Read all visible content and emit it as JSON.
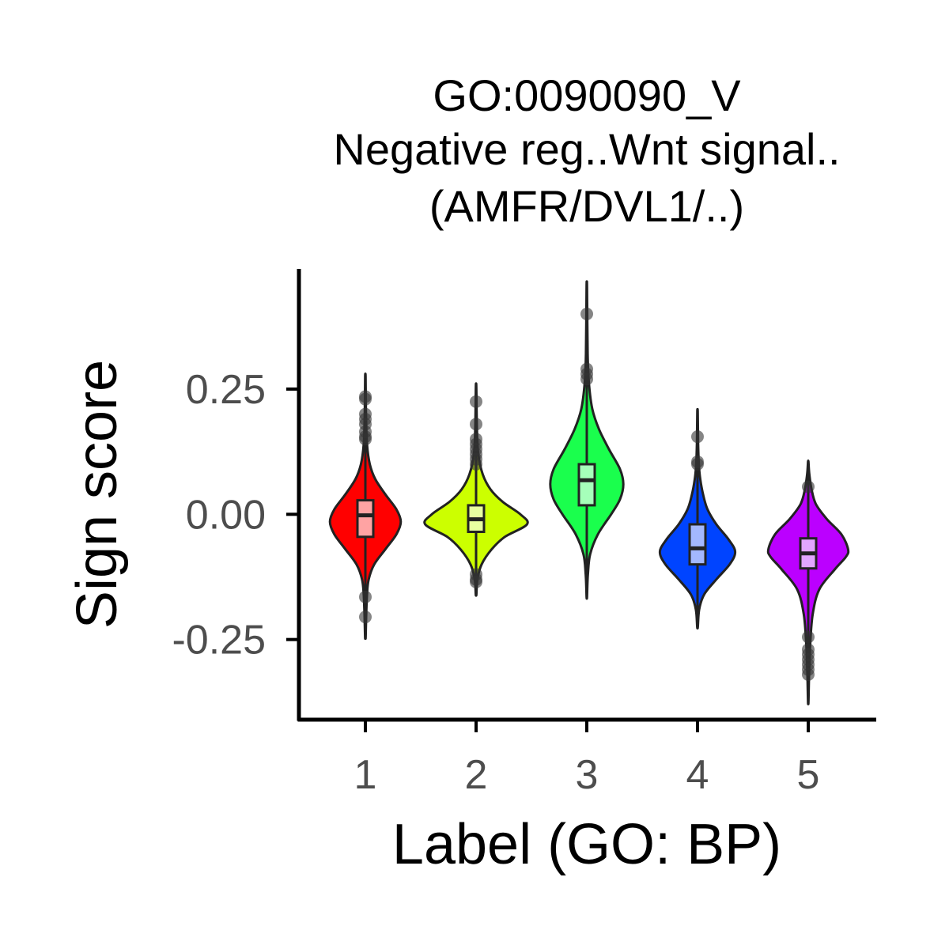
{
  "chart_data": {
    "type": "violin",
    "title_lines": [
      "GO:0090090_V",
      "Negative reg..Wnt signal..",
      "(AMFR/DVL1/..)"
    ],
    "xlabel": "Label (GO: BP)",
    "ylabel": "Sign score",
    "categories": [
      "1",
      "2",
      "3",
      "4",
      "5"
    ],
    "yticks": [
      0.25,
      0.0,
      -0.25
    ],
    "ytick_labels": [
      "0.25",
      "0.00",
      "-0.25"
    ],
    "ylim": [
      -0.41,
      0.49
    ],
    "grid": false,
    "legend": "none",
    "colors": [
      "#ff0000",
      "#ccff00",
      "#1aff4d",
      "#0044ff",
      "#bb00ff"
    ],
    "box_fill_colors": [
      "#ffa3a3",
      "#e8ffa0",
      "#a6ffba",
      "#a3b8ff",
      "#e2a6ff"
    ],
    "violins": [
      {
        "label": "1",
        "min": -0.245,
        "max": 0.275,
        "profile": [
          [
            -0.245,
            0.003
          ],
          [
            -0.2,
            0.008
          ],
          [
            -0.16,
            0.015
          ],
          [
            -0.13,
            0.03
          ],
          [
            -0.1,
            0.08
          ],
          [
            -0.07,
            0.18
          ],
          [
            -0.04,
            0.28
          ],
          [
            -0.015,
            0.32
          ],
          [
            0.01,
            0.28
          ],
          [
            0.04,
            0.18
          ],
          [
            0.07,
            0.09
          ],
          [
            0.1,
            0.04
          ],
          [
            0.14,
            0.015
          ],
          [
            0.2,
            0.006
          ],
          [
            0.275,
            0.002
          ]
        ],
        "box": {
          "q1": -0.045,
          "median": -0.002,
          "q3": 0.028
        },
        "outliers": [
          0.235,
          0.23,
          0.2,
          0.19,
          0.18,
          0.165,
          0.155,
          0.15,
          -0.165,
          -0.205
        ]
      },
      {
        "label": "2",
        "min": -0.16,
        "max": 0.255,
        "profile": [
          [
            -0.16,
            0.003
          ],
          [
            -0.13,
            0.012
          ],
          [
            -0.1,
            0.05
          ],
          [
            -0.07,
            0.14
          ],
          [
            -0.045,
            0.26
          ],
          [
            -0.02,
            0.46
          ],
          [
            0.0,
            0.4
          ],
          [
            0.025,
            0.24
          ],
          [
            0.05,
            0.13
          ],
          [
            0.08,
            0.06
          ],
          [
            0.12,
            0.02
          ],
          [
            0.17,
            0.008
          ],
          [
            0.255,
            0.002
          ]
        ],
        "box": {
          "q1": -0.035,
          "median": -0.01,
          "q3": 0.018
        },
        "outliers": [
          0.225,
          0.18,
          0.15,
          0.14,
          0.13,
          0.12,
          0.11,
          0.1,
          -0.12,
          -0.13,
          -0.135
        ]
      },
      {
        "label": "3",
        "min": -0.165,
        "max": 0.455,
        "profile": [
          [
            -0.165,
            0.002
          ],
          [
            -0.12,
            0.01
          ],
          [
            -0.08,
            0.03
          ],
          [
            -0.04,
            0.1
          ],
          [
            0.0,
            0.22
          ],
          [
            0.03,
            0.3
          ],
          [
            0.06,
            0.33
          ],
          [
            0.09,
            0.3
          ],
          [
            0.13,
            0.2
          ],
          [
            0.17,
            0.11
          ],
          [
            0.21,
            0.05
          ],
          [
            0.26,
            0.02
          ],
          [
            0.32,
            0.008
          ],
          [
            0.455,
            0.002
          ]
        ],
        "box": {
          "q1": 0.018,
          "median": 0.068,
          "q3": 0.1
        },
        "outliers": [
          0.4,
          0.29,
          0.28,
          0.27
        ]
      },
      {
        "label": "4",
        "min": -0.225,
        "max": 0.205,
        "profile": [
          [
            -0.225,
            0.003
          ],
          [
            -0.19,
            0.015
          ],
          [
            -0.16,
            0.06
          ],
          [
            -0.13,
            0.17
          ],
          [
            -0.1,
            0.29
          ],
          [
            -0.075,
            0.34
          ],
          [
            -0.05,
            0.28
          ],
          [
            -0.02,
            0.17
          ],
          [
            0.01,
            0.09
          ],
          [
            0.04,
            0.05
          ],
          [
            0.07,
            0.025
          ],
          [
            0.1,
            0.012
          ],
          [
            0.14,
            0.006
          ],
          [
            0.205,
            0.002
          ]
        ],
        "box": {
          "q1": -0.1,
          "median": -0.068,
          "q3": -0.02
        },
        "outliers": [
          0.155,
          0.105,
          0.1
        ]
      },
      {
        "label": "5",
        "min": -0.375,
        "max": 0.105,
        "profile": [
          [
            -0.375,
            0.002
          ],
          [
            -0.32,
            0.008
          ],
          [
            -0.26,
            0.018
          ],
          [
            -0.2,
            0.04
          ],
          [
            -0.15,
            0.1
          ],
          [
            -0.11,
            0.24
          ],
          [
            -0.085,
            0.34
          ],
          [
            -0.07,
            0.36
          ],
          [
            -0.04,
            0.3
          ],
          [
            -0.01,
            0.17
          ],
          [
            0.02,
            0.07
          ],
          [
            0.05,
            0.03
          ],
          [
            0.08,
            0.01
          ],
          [
            0.105,
            0.002
          ]
        ],
        "box": {
          "q1": -0.108,
          "median": -0.078,
          "q3": -0.048
        },
        "outliers": [
          0.055,
          -0.245,
          -0.27,
          -0.28,
          -0.29,
          -0.3,
          -0.31,
          -0.32
        ]
      }
    ]
  }
}
